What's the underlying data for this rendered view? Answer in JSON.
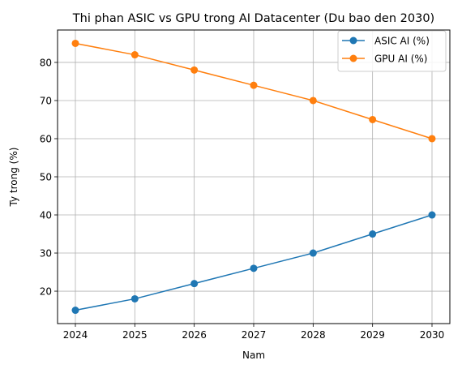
{
  "chart_data": {
    "type": "line",
    "title": "Thi phan ASIC vs GPU trong AI Datacenter (Du bao den 2030)",
    "xlabel": "Nam",
    "ylabel": "Ty trong (%)",
    "x": [
      2024,
      2025,
      2026,
      2027,
      2028,
      2029,
      2030
    ],
    "xticks": [
      "2024",
      "2025",
      "2026",
      "2027",
      "2028",
      "2029",
      "2030"
    ],
    "yticks": [
      20,
      30,
      40,
      50,
      60,
      70,
      80
    ],
    "ylim": [
      11.5,
      88.5
    ],
    "grid": true,
    "legend_position": "top-right",
    "series": [
      {
        "name": "ASIC AI (%)",
        "color": "#1f77b4",
        "marker": "circle",
        "values": [
          15,
          18,
          22,
          26,
          30,
          35,
          40
        ]
      },
      {
        "name": "GPU AI (%)",
        "color": "#ff7f0e",
        "marker": "circle",
        "values": [
          85,
          82,
          78,
          74,
          70,
          65,
          60
        ]
      }
    ]
  }
}
